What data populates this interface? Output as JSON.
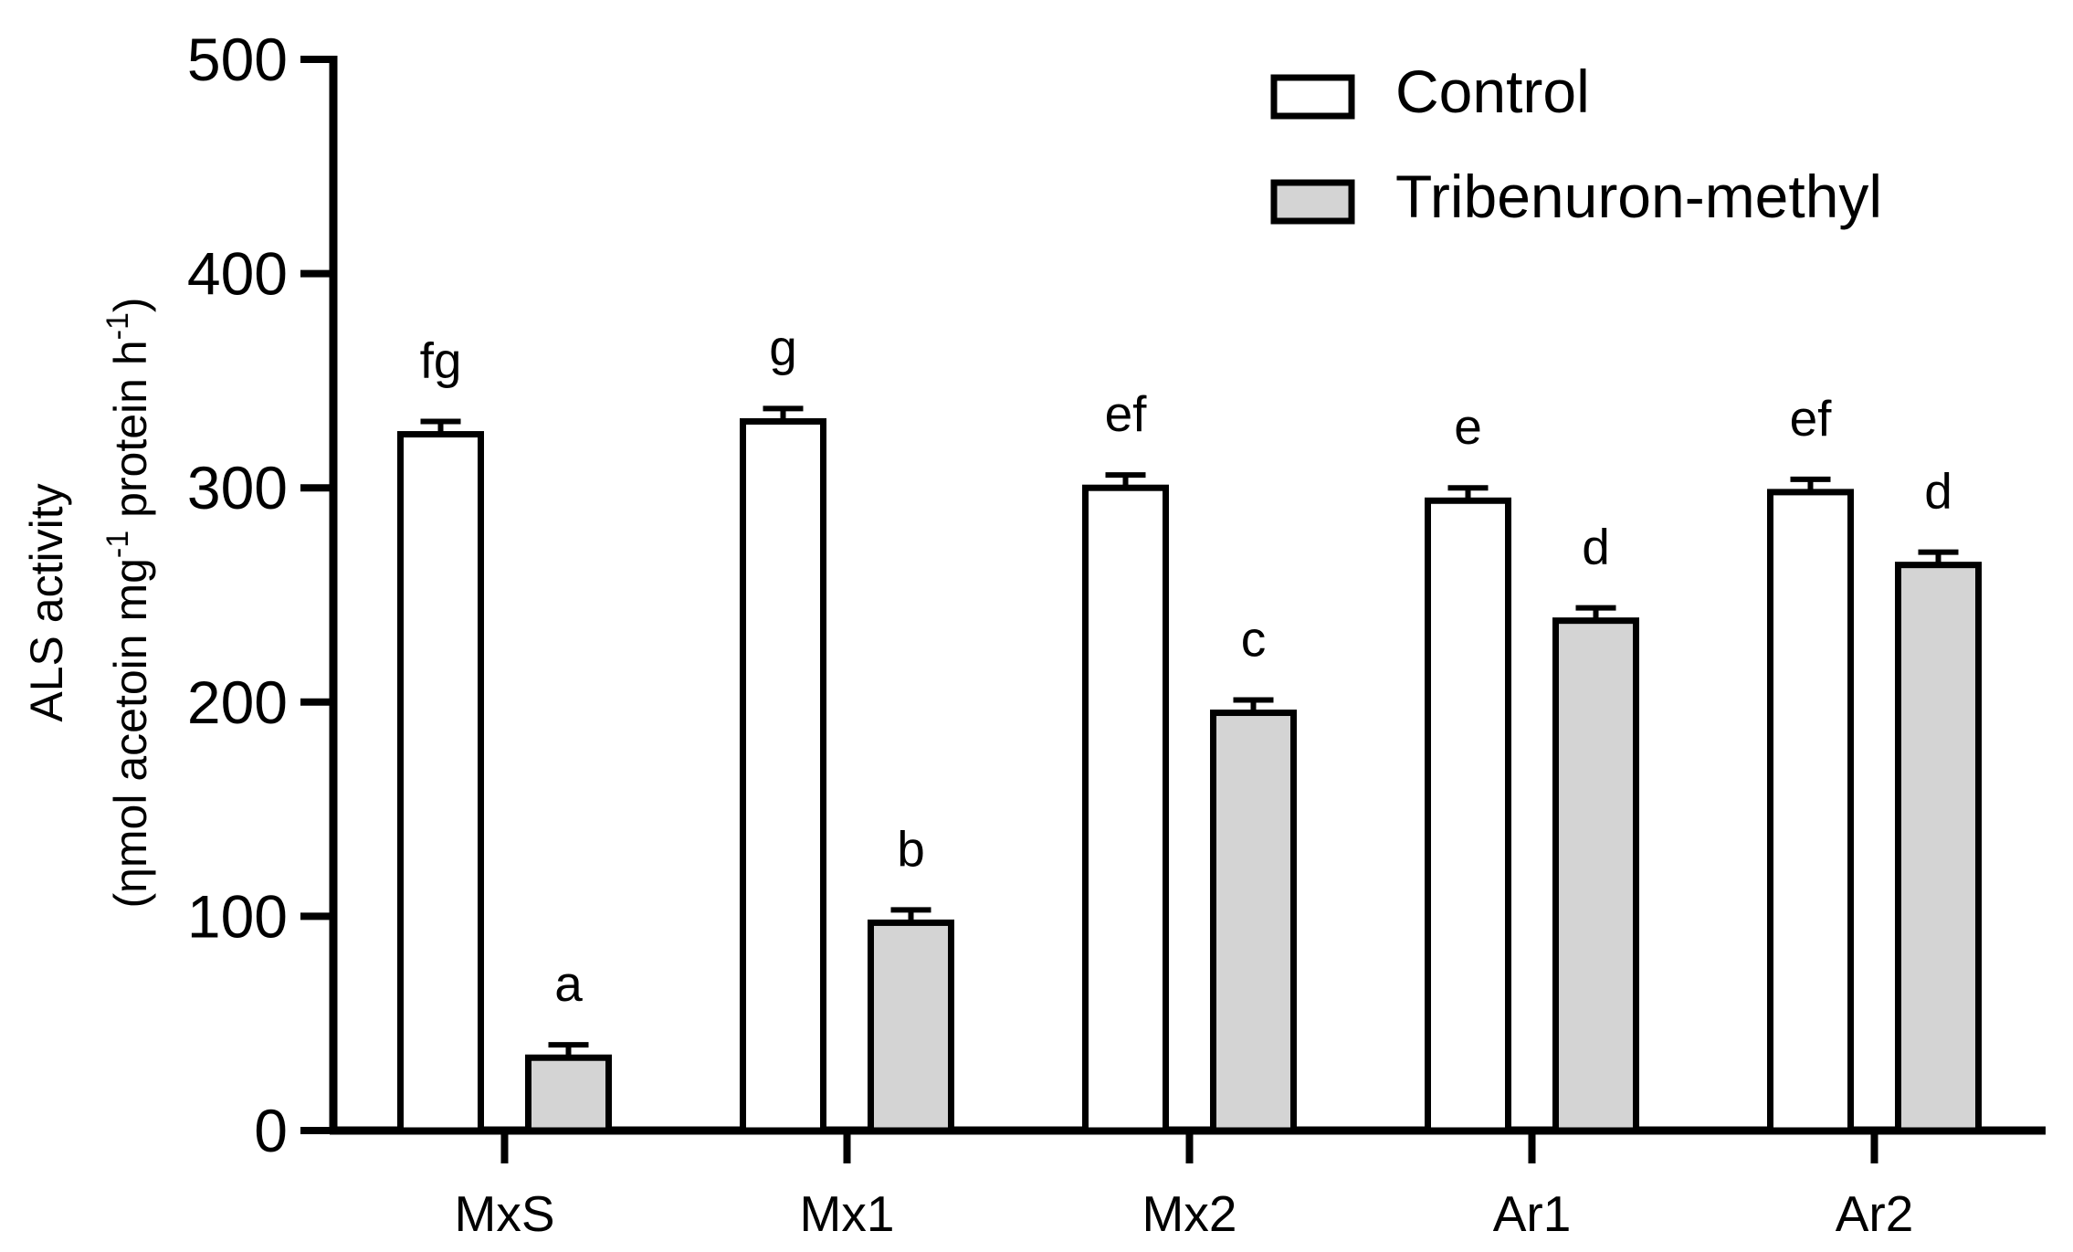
{
  "chart_data": {
    "type": "bar",
    "categories": [
      "MxS",
      "Mx1",
      "Mx2",
      "Ar1",
      "Ar2"
    ],
    "series": [
      {
        "name": "Control",
        "values": [
          325,
          331,
          300,
          294,
          298
        ],
        "errors": [
          6,
          6,
          6,
          6,
          6
        ],
        "letters": [
          "fg",
          "g",
          "ef",
          "e",
          "ef"
        ]
      },
      {
        "name": "Tribenuron-methyl",
        "values": [
          34,
          97,
          195,
          238,
          264
        ],
        "errors": [
          6,
          6,
          6,
          6,
          6
        ],
        "letters": [
          "a",
          "b",
          "c",
          "d",
          "d"
        ]
      }
    ],
    "ylim": [
      0,
      500
    ],
    "yticks": [
      0,
      100,
      200,
      300,
      400,
      500
    ],
    "ylabel_line1": "ALS activity",
    "ylabel_line2": {
      "prefix": "(ηmol acetoin mg",
      "sup1": "-1",
      "middle": " protein h",
      "sup2": "-1",
      "suffix": ")"
    },
    "xlabel": "",
    "title": "",
    "legend_position": "top-right",
    "colors": {
      "Control": "#ffffff",
      "Tribenuron-methyl": "#d4d4d4",
      "stroke": "#000000"
    }
  }
}
